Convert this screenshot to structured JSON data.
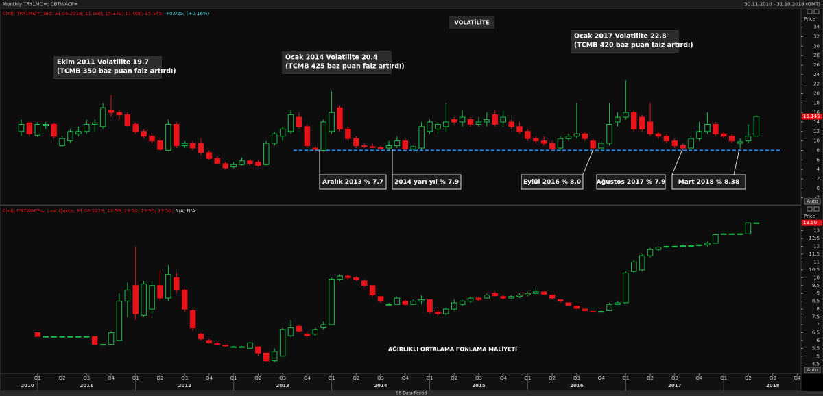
{
  "window": {
    "title": "Monthly TRY1MO=; CBTWACF=",
    "date_range": "30.11.2010 - 31.10.2018 (GMT)",
    "scrollbar_label": "96 Data Period"
  },
  "chart_data": [
    {
      "type": "candlestick",
      "header": "Cndl; TRY1MO=; Bid; 31.05.2018; 11.000; 15.370; 11.000; 15.145;",
      "header_change": "+0.025; (+0.16%)",
      "title": "VOLATİLİTE",
      "axis_label": "Price",
      "auto_label": "Auto",
      "last_value_label": "15.145",
      "up_color": "#19c24a",
      "down_color": "#e8141b",
      "ylim": [
        -3.5,
        38
      ],
      "yticks": [
        -2,
        0,
        2,
        4,
        6,
        8,
        10,
        12,
        14,
        16,
        18,
        20,
        22,
        24,
        26,
        28,
        30,
        32,
        34
      ],
      "reference_line": 8,
      "annotations": [
        {
          "lines": [
            "Ekim 2011 Volatilite 19.7",
            "(TCMB 350 baz puan faiz artırdı)"
          ]
        },
        {
          "lines": [
            "Ocak 2014 Volatilite 20.4",
            "(TCMB 425 baz puan faiz artırdı)"
          ]
        },
        {
          "lines": [
            "Ocak 2017 Volatilite 22.8",
            "(TCMB 420 baz puan faiz artırdı)"
          ]
        }
      ],
      "callouts": [
        "Aralık 2013  % 7.7",
        "2014 yarı yıl  % 7.9",
        "Eylül 2016  % 8.0",
        "Ağustos 2017   % 7.9",
        "Mart 2018  % 8.38"
      ],
      "ohlc": [
        [
          12,
          14.5,
          11,
          13.5
        ],
        [
          13.8,
          14,
          11,
          11.5
        ],
        [
          11.2,
          14,
          10.8,
          13.5
        ],
        [
          13.2,
          14,
          12.5,
          13.5
        ],
        [
          13.5,
          13.8,
          10.5,
          11
        ],
        [
          9,
          11,
          8.8,
          10.5
        ],
        [
          10,
          12.5,
          9.5,
          12
        ],
        [
          11.5,
          13,
          11,
          12
        ],
        [
          12,
          14.5,
          11.5,
          13.5
        ],
        [
          13.5,
          14.5,
          12,
          13.8
        ],
        [
          13,
          18,
          12.5,
          17
        ],
        [
          16.5,
          19.7,
          15,
          16
        ],
        [
          16,
          16.5,
          14.5,
          15.5
        ],
        [
          15.5,
          16,
          13,
          13.2
        ],
        [
          13.5,
          14,
          11.5,
          12
        ],
        [
          12,
          12.5,
          10.5,
          11
        ],
        [
          11,
          11.5,
          9.5,
          10
        ],
        [
          10,
          10.5,
          8,
          8.2
        ],
        [
          8,
          14.5,
          7.8,
          13.5
        ],
        [
          13.5,
          14,
          8.5,
          9
        ],
        [
          9,
          10,
          8.5,
          9.5
        ],
        [
          9.5,
          10,
          8,
          8.5
        ],
        [
          9.5,
          10.5,
          7,
          7.5
        ],
        [
          7.5,
          8,
          6,
          6.3
        ],
        [
          6.3,
          6.8,
          5,
          5.2
        ],
        [
          5.2,
          5.5,
          4,
          4.3
        ],
        [
          4.5,
          5.5,
          4.2,
          5
        ],
        [
          5,
          6.5,
          4.8,
          5.8
        ],
        [
          5.8,
          6.2,
          4.8,
          5.2
        ],
        [
          5.5,
          6,
          4.5,
          4.8
        ],
        [
          5,
          10,
          4.8,
          9.5
        ],
        [
          9.5,
          12,
          9,
          11.5
        ],
        [
          11,
          13,
          10,
          12.5
        ],
        [
          12,
          16.5,
          11.5,
          15.5
        ],
        [
          15,
          16,
          12.5,
          13
        ],
        [
          13,
          13.5,
          8.5,
          9
        ],
        [
          8.5,
          9,
          7.7,
          8.2
        ],
        [
          8,
          14.5,
          7.7,
          14
        ],
        [
          12,
          20.4,
          11.5,
          16
        ],
        [
          17,
          17.5,
          12,
          12.5
        ],
        [
          12.5,
          13,
          10,
          10.5
        ],
        [
          10.5,
          11,
          8.5,
          9
        ],
        [
          9,
          9.5,
          8.5,
          8.8
        ],
        [
          8.8,
          9.5,
          8.5,
          8.6
        ],
        [
          8.6,
          9,
          7.9,
          8.4
        ],
        [
          8.5,
          10,
          7.9,
          9
        ],
        [
          9,
          11,
          8.5,
          10
        ],
        [
          10,
          10.5,
          8,
          8.3
        ],
        [
          8.3,
          9,
          8,
          8.8
        ],
        [
          8.5,
          14,
          8.2,
          13
        ],
        [
          12,
          14.5,
          11.5,
          14
        ],
        [
          12.5,
          14,
          11.5,
          13.5
        ],
        [
          13,
          18,
          12,
          14
        ],
        [
          14.5,
          15,
          13.5,
          14
        ],
        [
          14,
          16.5,
          13,
          15
        ],
        [
          14.5,
          15,
          13,
          13.5
        ],
        [
          13.5,
          15,
          13,
          14
        ],
        [
          14,
          16,
          13,
          14.5
        ],
        [
          15.5,
          16.5,
          13,
          13.5
        ],
        [
          14,
          16.5,
          13,
          15
        ],
        [
          14,
          14.5,
          12.5,
          13
        ],
        [
          13,
          14,
          11.5,
          12
        ],
        [
          12,
          12.5,
          10,
          10.5
        ],
        [
          10.5,
          11,
          9.5,
          10
        ],
        [
          10,
          11,
          9,
          9.5
        ],
        [
          9.5,
          10,
          8,
          8.3
        ],
        [
          8.5,
          11,
          8,
          10.5
        ],
        [
          10.5,
          11.5,
          10,
          11
        ],
        [
          11,
          18,
          10.5,
          11.5
        ],
        [
          11.5,
          12,
          10,
          10.5
        ],
        [
          10,
          10.5,
          8,
          8.5
        ],
        [
          8.5,
          10,
          8,
          9.5
        ],
        [
          9.5,
          18,
          9,
          13.5
        ],
        [
          14,
          16,
          13,
          15
        ],
        [
          15,
          22.8,
          14.5,
          16
        ],
        [
          16,
          16.5,
          12,
          12.5
        ],
        [
          15,
          15.5,
          12,
          12.5
        ],
        [
          14,
          18,
          11,
          11.5
        ],
        [
          11.5,
          12,
          10.5,
          11
        ],
        [
          11,
          11.5,
          9.5,
          10
        ],
        [
          10,
          10.5,
          8.5,
          9
        ],
        [
          9,
          9.5,
          7.9,
          8.5
        ],
        [
          8.5,
          11,
          8.2,
          10.5
        ],
        [
          10.5,
          14,
          10,
          12
        ],
        [
          12,
          16,
          11.5,
          13.5
        ],
        [
          13.5,
          14,
          11,
          11.5
        ],
        [
          11.5,
          12,
          10.5,
          11
        ],
        [
          11,
          11.5,
          9.5,
          10
        ],
        [
          9.5,
          10.5,
          8.38,
          9.8
        ],
        [
          10,
          13.5,
          9.5,
          11
        ],
        [
          11,
          15.37,
          11,
          15.145
        ]
      ]
    },
    {
      "type": "candlestick",
      "header": "Cndl; CBTWACF=; Last Quote; 31.05.2018; 13.50; 13.50; 13.50; 13.50;",
      "header_change": "N/A; N/A",
      "title": "AĞIRLIKLI ORTALAMA FONLAMA MALİYETİ",
      "axis_label": "Price",
      "auto_label": "Auto",
      "last_value_label": "13.50",
      "up_color": "#19c24a",
      "down_color": "#e8141b",
      "ylim": [
        3.9,
        14.6
      ],
      "yticks": [
        4.5,
        5,
        5.5,
        6,
        6.5,
        7,
        7.5,
        8,
        8.5,
        9,
        9.5,
        10,
        10.5,
        11,
        11.5,
        12,
        12.5,
        13
      ],
      "quarter_labels": [
        "Q1",
        "Q2",
        "Q3",
        "Q4",
        "Q1",
        "Q2",
        "Q3",
        "Q4",
        "Q1",
        "Q2",
        "Q3",
        "Q4",
        "Q1",
        "Q2",
        "Q3",
        "Q4",
        "Q1",
        "Q2",
        "Q3",
        "Q4",
        "Q1",
        "Q2",
        "Q3",
        "Q4",
        "Q1",
        "Q2",
        "Q3",
        "Q4",
        "Q1",
        "Q2",
        "Q3",
        "Q4"
      ],
      "year_labels": [
        "2010",
        "2011",
        "2012",
        "2013",
        "2014",
        "2015",
        "2016",
        "2017",
        "2018"
      ],
      "ohlc": [
        null,
        null,
        [
          6.5,
          6.5,
          6.25,
          6.25
        ],
        [
          6.25,
          6.25,
          6.25,
          6.25
        ],
        [
          6.25,
          6.25,
          6.25,
          6.25
        ],
        [
          6.25,
          6.25,
          6.25,
          6.25
        ],
        [
          6.25,
          6.25,
          6.25,
          6.25
        ],
        [
          6.25,
          6.25,
          6.25,
          6.25
        ],
        [
          6.25,
          6.25,
          6.25,
          6.25
        ],
        [
          6.25,
          6.25,
          5.75,
          5.75
        ],
        [
          5.75,
          5.75,
          5.75,
          5.75
        ],
        [
          5.75,
          6.6,
          5.75,
          6.5
        ],
        [
          6,
          9,
          6,
          8.5
        ],
        [
          8.5,
          9.7,
          7.5,
          9.2
        ],
        [
          9.5,
          12,
          7.3,
          7.7
        ],
        [
          7.6,
          9.8,
          7.5,
          9.6
        ],
        [
          8,
          9.8,
          7.7,
          9.5
        ],
        [
          9.5,
          10.5,
          8.5,
          8.7
        ],
        [
          8.7,
          10.8,
          8.5,
          10.2
        ],
        [
          10,
          10.3,
          9,
          9.2
        ],
        [
          9.2,
          9.3,
          7.8,
          8
        ],
        [
          7.9,
          8,
          6.6,
          6.8
        ],
        [
          6.4,
          6.5,
          6,
          6.1
        ],
        [
          6,
          6.1,
          5.8,
          5.85
        ],
        [
          5.8,
          5.9,
          5.7,
          5.75
        ],
        [
          5.7,
          5.75,
          5.6,
          5.65
        ],
        [
          5.6,
          5.65,
          5.55,
          5.6
        ],
        [
          5.6,
          5.65,
          5.55,
          5.6
        ],
        [
          5.5,
          5.9,
          5.5,
          5.85
        ],
        [
          5.6,
          5.6,
          5,
          5.2
        ],
        [
          5.2,
          5.2,
          4.6,
          4.7
        ],
        [
          4.7,
          5.5,
          4.6,
          5.3
        ],
        [
          5,
          6.8,
          5,
          6.7
        ],
        [
          6.3,
          7.3,
          6.2,
          6.8
        ],
        [
          6.9,
          7,
          6.5,
          6.6
        ],
        [
          6.4,
          6.6,
          6.2,
          6.3
        ],
        [
          6.4,
          6.8,
          6.3,
          6.7
        ],
        [
          6.8,
          7.2,
          6.7,
          7
        ],
        [
          7,
          10,
          7,
          9.9
        ],
        [
          9.9,
          10.2,
          9.8,
          10.1
        ],
        [
          10.1,
          10.2,
          9.9,
          10
        ],
        [
          10,
          10.1,
          9.8,
          9.9
        ],
        [
          9.8,
          9.9,
          9.4,
          9.5
        ],
        [
          9.5,
          9.5,
          8.8,
          8.9
        ],
        [
          8.8,
          8.8,
          8.4,
          8.5
        ],
        [
          8.3,
          8.4,
          8.25,
          8.3
        ],
        [
          8.3,
          8.8,
          8.3,
          8.7
        ],
        [
          8.5,
          8.6,
          8.2,
          8.3
        ],
        [
          8.3,
          8.6,
          8.3,
          8.5
        ],
        [
          8.5,
          8.9,
          8.3,
          8.6
        ],
        [
          8.6,
          8.6,
          7.7,
          7.8
        ],
        [
          7.8,
          8,
          7.6,
          7.7
        ],
        [
          7.7,
          8.1,
          7.6,
          8
        ],
        [
          8,
          8.6,
          7.9,
          8.4
        ],
        [
          8.3,
          8.6,
          8.2,
          8.5
        ],
        [
          8.5,
          8.8,
          8.4,
          8.7
        ],
        [
          8.7,
          8.8,
          8.5,
          8.6
        ],
        [
          8.7,
          9,
          8.7,
          8.9
        ],
        [
          9,
          9.1,
          8.8,
          8.85
        ],
        [
          8.8,
          8.9,
          8.6,
          8.7
        ],
        [
          8.7,
          8.9,
          8.7,
          8.8
        ],
        [
          8.8,
          9,
          8.7,
          8.9
        ],
        [
          8.9,
          9.1,
          8.8,
          9
        ],
        [
          9,
          9.3,
          8.9,
          9.1
        ],
        [
          9.1,
          9.1,
          8.9,
          8.95
        ],
        [
          8.9,
          8.9,
          8.6,
          8.7
        ],
        [
          8.6,
          8.6,
          8.4,
          8.5
        ],
        [
          8.4,
          8.4,
          8.2,
          8.25
        ],
        [
          8.2,
          8.2,
          8,
          8.05
        ],
        [
          8,
          8,
          7.85,
          7.9
        ],
        [
          7.85,
          7.85,
          7.8,
          7.82
        ],
        [
          7.8,
          7.9,
          7.8,
          7.85
        ],
        [
          7.9,
          8.4,
          7.9,
          8.3
        ],
        [
          8.3,
          8.5,
          8.3,
          8.4
        ],
        [
          8.4,
          10.4,
          8.4,
          10.3
        ],
        [
          10.4,
          11.1,
          10.3,
          11
        ],
        [
          10.5,
          11.5,
          10.4,
          11.4
        ],
        [
          11.4,
          11.9,
          11.3,
          11.8
        ],
        [
          11.8,
          12,
          11.7,
          11.95
        ],
        [
          11.95,
          12.05,
          11.9,
          12
        ],
        [
          12,
          12.05,
          11.95,
          12
        ],
        [
          12,
          12.1,
          11.95,
          12.05
        ],
        [
          12.05,
          12.1,
          12,
          12.05
        ],
        [
          12.05,
          12.1,
          12,
          12.1
        ],
        [
          12.1,
          12.3,
          12,
          12.2
        ],
        [
          12.2,
          12.8,
          12.2,
          12.75
        ],
        [
          12.8,
          12.85,
          12.75,
          12.8
        ],
        [
          12.8,
          12.8,
          12.8,
          12.8
        ],
        [
          12.8,
          12.8,
          12.8,
          12.8
        ],
        [
          12.8,
          13.5,
          12.8,
          13.5
        ],
        [
          13.5,
          13.5,
          13.5,
          13.5
        ]
      ]
    }
  ]
}
